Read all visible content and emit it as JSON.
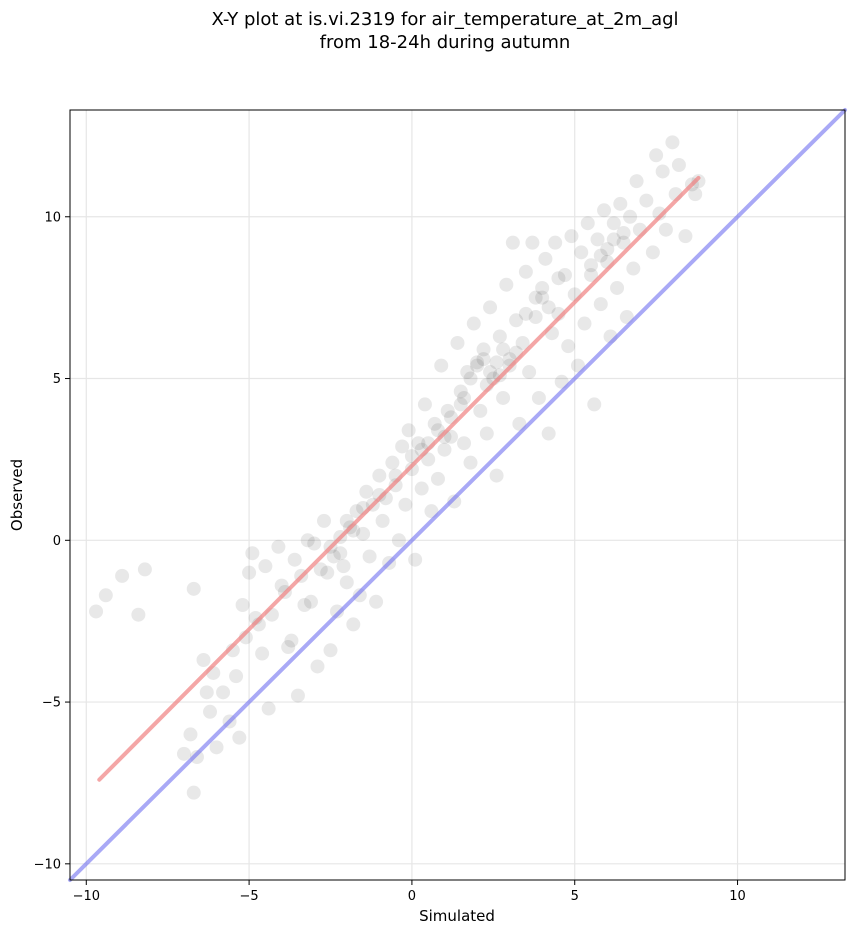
{
  "chart_data": {
    "type": "scatter",
    "title_line1": "X-Y plot at is.vi.2319 for air_temperature_at_2m_agl",
    "title_line2": "from 18-24h during autumn",
    "xlabel": "Simulated",
    "ylabel": "Observed",
    "xlim": [
      -10.5,
      13.3
    ],
    "ylim": [
      -10.5,
      13.3
    ],
    "xticks": [
      -10,
      -5,
      0,
      5,
      10
    ],
    "yticks": [
      -10,
      -5,
      0,
      5,
      10
    ],
    "xtick_labels": [
      "−10",
      "−5",
      "0",
      "5",
      "10"
    ],
    "ytick_labels": [
      "−10",
      "−5",
      "0",
      "5",
      "10"
    ],
    "grid": true,
    "regression_line": {
      "x": [
        -9.6,
        8.8
      ],
      "y": [
        -7.4,
        11.2
      ],
      "color": "#f08080"
    },
    "identity_line": {
      "x": [
        -10.5,
        13.3
      ],
      "y": [
        -10.5,
        13.3
      ],
      "color": "#6f6ff0"
    },
    "point_color": "#000000",
    "point_opacity": 0.09,
    "points": [
      [
        -9.7,
        -2.2
      ],
      [
        -9.4,
        -1.7
      ],
      [
        -8.9,
        -1.1
      ],
      [
        -8.4,
        -2.3
      ],
      [
        -8.2,
        -0.9
      ],
      [
        -7.0,
        -6.6
      ],
      [
        -6.8,
        -6.0
      ],
      [
        -6.7,
        -7.8
      ],
      [
        -6.6,
        -6.7
      ],
      [
        -6.7,
        -1.5
      ],
      [
        -6.4,
        -3.7
      ],
      [
        -6.3,
        -4.7
      ],
      [
        -6.2,
        -5.3
      ],
      [
        -6.1,
        -4.1
      ],
      [
        -6.0,
        -6.4
      ],
      [
        -5.8,
        -4.7
      ],
      [
        -5.6,
        -5.6
      ],
      [
        -5.5,
        -3.4
      ],
      [
        -5.4,
        -4.2
      ],
      [
        -5.3,
        -6.1
      ],
      [
        -5.2,
        -2.0
      ],
      [
        -5.1,
        -3.0
      ],
      [
        -5.0,
        -1.0
      ],
      [
        -4.9,
        -0.4
      ],
      [
        -4.8,
        -2.4
      ],
      [
        -4.7,
        -2.6
      ],
      [
        -4.6,
        -3.5
      ],
      [
        -4.5,
        -0.8
      ],
      [
        -4.4,
        -5.2
      ],
      [
        -4.3,
        -2.3
      ],
      [
        -4.1,
        -0.2
      ],
      [
        -4.0,
        -1.4
      ],
      [
        -3.9,
        -1.6
      ],
      [
        -3.8,
        -3.3
      ],
      [
        -3.7,
        -3.1
      ],
      [
        -3.6,
        -0.6
      ],
      [
        -3.5,
        -4.8
      ],
      [
        -3.4,
        -1.1
      ],
      [
        -3.3,
        -2.0
      ],
      [
        -3.2,
        0.0
      ],
      [
        -3.1,
        -1.9
      ],
      [
        -3.0,
        -0.1
      ],
      [
        -2.9,
        -3.9
      ],
      [
        -2.8,
        -0.9
      ],
      [
        -2.7,
        0.6
      ],
      [
        -2.6,
        -1.0
      ],
      [
        -2.5,
        -3.4
      ],
      [
        -2.4,
        -0.5
      ],
      [
        -2.3,
        -2.2
      ],
      [
        -2.2,
        0.1
      ],
      [
        -2.1,
        -0.8
      ],
      [
        -2.0,
        -1.3
      ],
      [
        -1.9,
        0.4
      ],
      [
        -1.8,
        -2.6
      ],
      [
        -1.7,
        0.9
      ],
      [
        -1.6,
        -1.7
      ],
      [
        -1.5,
        0.2
      ],
      [
        -1.4,
        1.5
      ],
      [
        -1.3,
        -0.5
      ],
      [
        -1.2,
        1.1
      ],
      [
        -1.1,
        -1.9
      ],
      [
        -1.0,
        2.0
      ],
      [
        -0.9,
        0.6
      ],
      [
        -0.8,
        1.3
      ],
      [
        -0.7,
        -0.7
      ],
      [
        -0.6,
        2.4
      ],
      [
        -0.5,
        1.7
      ],
      [
        -0.4,
        0.0
      ],
      [
        -0.3,
        2.9
      ],
      [
        -0.2,
        1.1
      ],
      [
        -0.1,
        3.4
      ],
      [
        0.0,
        2.2
      ],
      [
        0.1,
        -0.6
      ],
      [
        0.2,
        3.0
      ],
      [
        0.3,
        1.6
      ],
      [
        0.4,
        4.2
      ],
      [
        0.5,
        2.5
      ],
      [
        0.6,
        0.9
      ],
      [
        0.7,
        3.6
      ],
      [
        0.8,
        1.9
      ],
      [
        0.9,
        5.4
      ],
      [
        1.0,
        2.8
      ],
      [
        1.1,
        4.0
      ],
      [
        1.2,
        3.2
      ],
      [
        1.3,
        1.2
      ],
      [
        1.4,
        6.1
      ],
      [
        1.5,
        4.6
      ],
      [
        1.6,
        3.0
      ],
      [
        1.7,
        5.2
      ],
      [
        1.8,
        2.4
      ],
      [
        1.9,
        6.7
      ],
      [
        2.0,
        5.5
      ],
      [
        2.1,
        4.0
      ],
      [
        2.2,
        5.9
      ],
      [
        2.3,
        3.3
      ],
      [
        2.4,
        7.2
      ],
      [
        2.5,
        5.0
      ],
      [
        2.6,
        2.0
      ],
      [
        2.7,
        6.3
      ],
      [
        2.8,
        4.4
      ],
      [
        2.9,
        7.9
      ],
      [
        3.0,
        5.6
      ],
      [
        3.1,
        9.2
      ],
      [
        3.2,
        6.8
      ],
      [
        3.3,
        3.6
      ],
      [
        3.4,
        6.1
      ],
      [
        3.5,
        8.3
      ],
      [
        3.6,
        5.2
      ],
      [
        3.7,
        9.2
      ],
      [
        3.8,
        6.9
      ],
      [
        3.9,
        4.4
      ],
      [
        4.0,
        7.5
      ],
      [
        4.1,
        8.7
      ],
      [
        4.2,
        3.3
      ],
      [
        4.3,
        6.4
      ],
      [
        4.4,
        9.2
      ],
      [
        4.5,
        7.0
      ],
      [
        4.6,
        4.9
      ],
      [
        4.7,
        8.2
      ],
      [
        4.8,
        6.0
      ],
      [
        4.9,
        9.4
      ],
      [
        5.0,
        7.6
      ],
      [
        5.1,
        5.4
      ],
      [
        5.2,
        8.9
      ],
      [
        5.3,
        6.7
      ],
      [
        5.4,
        9.8
      ],
      [
        5.5,
        8.2
      ],
      [
        5.6,
        4.2
      ],
      [
        5.7,
        9.3
      ],
      [
        5.8,
        7.3
      ],
      [
        5.9,
        10.2
      ],
      [
        6.0,
        8.6
      ],
      [
        6.1,
        6.3
      ],
      [
        6.2,
        9.8
      ],
      [
        6.3,
        7.8
      ],
      [
        6.4,
        10.4
      ],
      [
        6.5,
        9.2
      ],
      [
        6.6,
        6.9
      ],
      [
        6.7,
        10.0
      ],
      [
        6.8,
        8.4
      ],
      [
        6.9,
        11.1
      ],
      [
        7.0,
        9.6
      ],
      [
        7.2,
        10.5
      ],
      [
        7.4,
        8.9
      ],
      [
        7.5,
        11.9
      ],
      [
        7.6,
        10.1
      ],
      [
        7.7,
        11.4
      ],
      [
        7.8,
        9.6
      ],
      [
        8.0,
        12.3
      ],
      [
        8.1,
        10.7
      ],
      [
        8.2,
        11.6
      ],
      [
        8.4,
        9.4
      ],
      [
        8.6,
        11.0
      ],
      [
        8.7,
        10.7
      ],
      [
        8.8,
        11.1
      ],
      [
        2.0,
        5.4
      ],
      [
        2.2,
        5.6
      ],
      [
        2.4,
        5.2
      ],
      [
        2.6,
        5.5
      ],
      [
        2.8,
        5.9
      ],
      [
        3.0,
        5.4
      ],
      [
        1.8,
        5.0
      ],
      [
        2.3,
        4.8
      ],
      [
        2.7,
        5.1
      ],
      [
        3.2,
        5.8
      ],
      [
        1.0,
        3.2
      ],
      [
        0.5,
        3.0
      ],
      [
        0.0,
        2.6
      ],
      [
        -0.5,
        2.0
      ],
      [
        -1.0,
        1.4
      ],
      [
        5.5,
        8.5
      ],
      [
        6.0,
        9.0
      ],
      [
        6.5,
        9.5
      ],
      [
        5.8,
        8.8
      ],
      [
        6.2,
        9.3
      ],
      [
        4.0,
        7.8
      ],
      [
        4.5,
        8.1
      ],
      [
        3.5,
        7.0
      ],
      [
        3.8,
        7.5
      ],
      [
        4.2,
        7.2
      ],
      [
        1.5,
        4.2
      ],
      [
        1.2,
        3.8
      ],
      [
        0.8,
        3.4
      ],
      [
        1.6,
        4.4
      ],
      [
        0.3,
        2.8
      ],
      [
        -2.0,
        0.6
      ],
      [
        -1.5,
        1.0
      ],
      [
        -2.5,
        -0.2
      ],
      [
        -1.8,
        0.3
      ],
      [
        -2.2,
        -0.4
      ]
    ]
  }
}
